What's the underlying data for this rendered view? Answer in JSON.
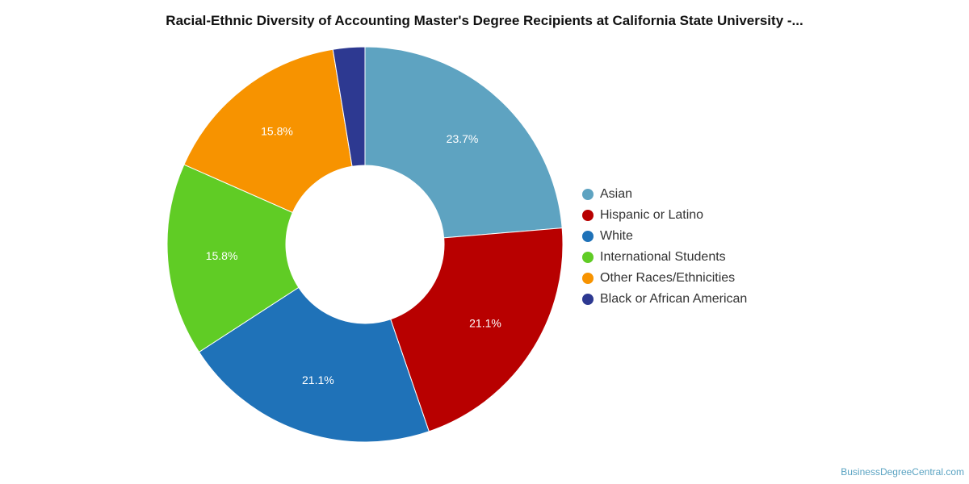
{
  "chart_data": {
    "type": "pie",
    "title": "Racial-Ethnic Diversity of Accounting Master's Degree Recipients at California State University -...",
    "unit": "%",
    "donut": true,
    "legend_position": "right",
    "categories": [
      "Asian",
      "Hispanic or Latino",
      "White",
      "International Students",
      "Other Races/Ethnicities",
      "Black or African American"
    ],
    "values": [
      23.7,
      21.1,
      21.1,
      15.8,
      15.8,
      2.6
    ],
    "data_labels": [
      "23.7%",
      "21.1%",
      "21.1%",
      "15.8%",
      "15.8%",
      ""
    ],
    "colors": [
      "#5ea3c1",
      "#b80000",
      "#1f72b8",
      "#60cc25",
      "#f79300",
      "#2d3991"
    ]
  },
  "source_text": "BusinessDegreeCentral.com"
}
